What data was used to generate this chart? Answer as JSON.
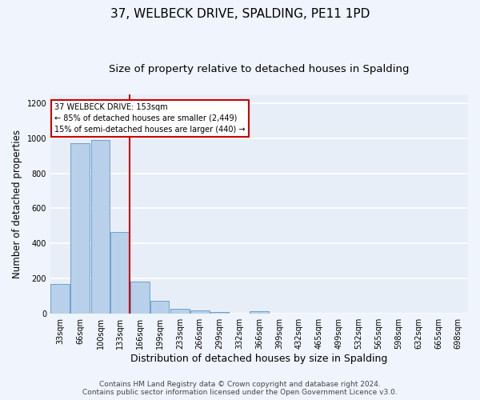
{
  "title": "37, WELBECK DRIVE, SPALDING, PE11 1PD",
  "subtitle": "Size of property relative to detached houses in Spalding",
  "xlabel": "Distribution of detached houses by size in Spalding",
  "ylabel": "Number of detached properties",
  "bar_color": "#b8d0ea",
  "bar_edge_color": "#5a9ac8",
  "background_color": "#e8eef8",
  "grid_color": "#ffffff",
  "annotation_text": "37 WELBECK DRIVE: 153sqm\n← 85% of detached houses are smaller (2,449)\n15% of semi-detached houses are larger (440) →",
  "vline_color": "#cc0000",
  "categories": [
    "33sqm",
    "66sqm",
    "100sqm",
    "133sqm",
    "166sqm",
    "199sqm",
    "233sqm",
    "266sqm",
    "299sqm",
    "332sqm",
    "366sqm",
    "399sqm",
    "432sqm",
    "465sqm",
    "499sqm",
    "532sqm",
    "565sqm",
    "598sqm",
    "632sqm",
    "665sqm",
    "698sqm"
  ],
  "bin_edges": [
    33,
    66,
    100,
    133,
    166,
    199,
    233,
    266,
    299,
    332,
    366,
    399,
    432,
    465,
    499,
    532,
    565,
    598,
    632,
    665,
    698
  ],
  "bin_width": 33,
  "values": [
    170,
    970,
    990,
    465,
    185,
    75,
    28,
    20,
    12,
    0,
    13,
    0,
    0,
    0,
    0,
    0,
    0,
    0,
    0,
    0,
    0
  ],
  "ylim": [
    0,
    1250
  ],
  "yticks": [
    0,
    200,
    400,
    600,
    800,
    1000,
    1200
  ],
  "footer_text": "Contains HM Land Registry data © Crown copyright and database right 2024.\nContains public sector information licensed under the Open Government Licence v3.0.",
  "title_fontsize": 11,
  "subtitle_fontsize": 9.5,
  "xlabel_fontsize": 9,
  "ylabel_fontsize": 8.5,
  "tick_fontsize": 7,
  "footer_fontsize": 6.5,
  "fig_bg": "#f0f4fc"
}
